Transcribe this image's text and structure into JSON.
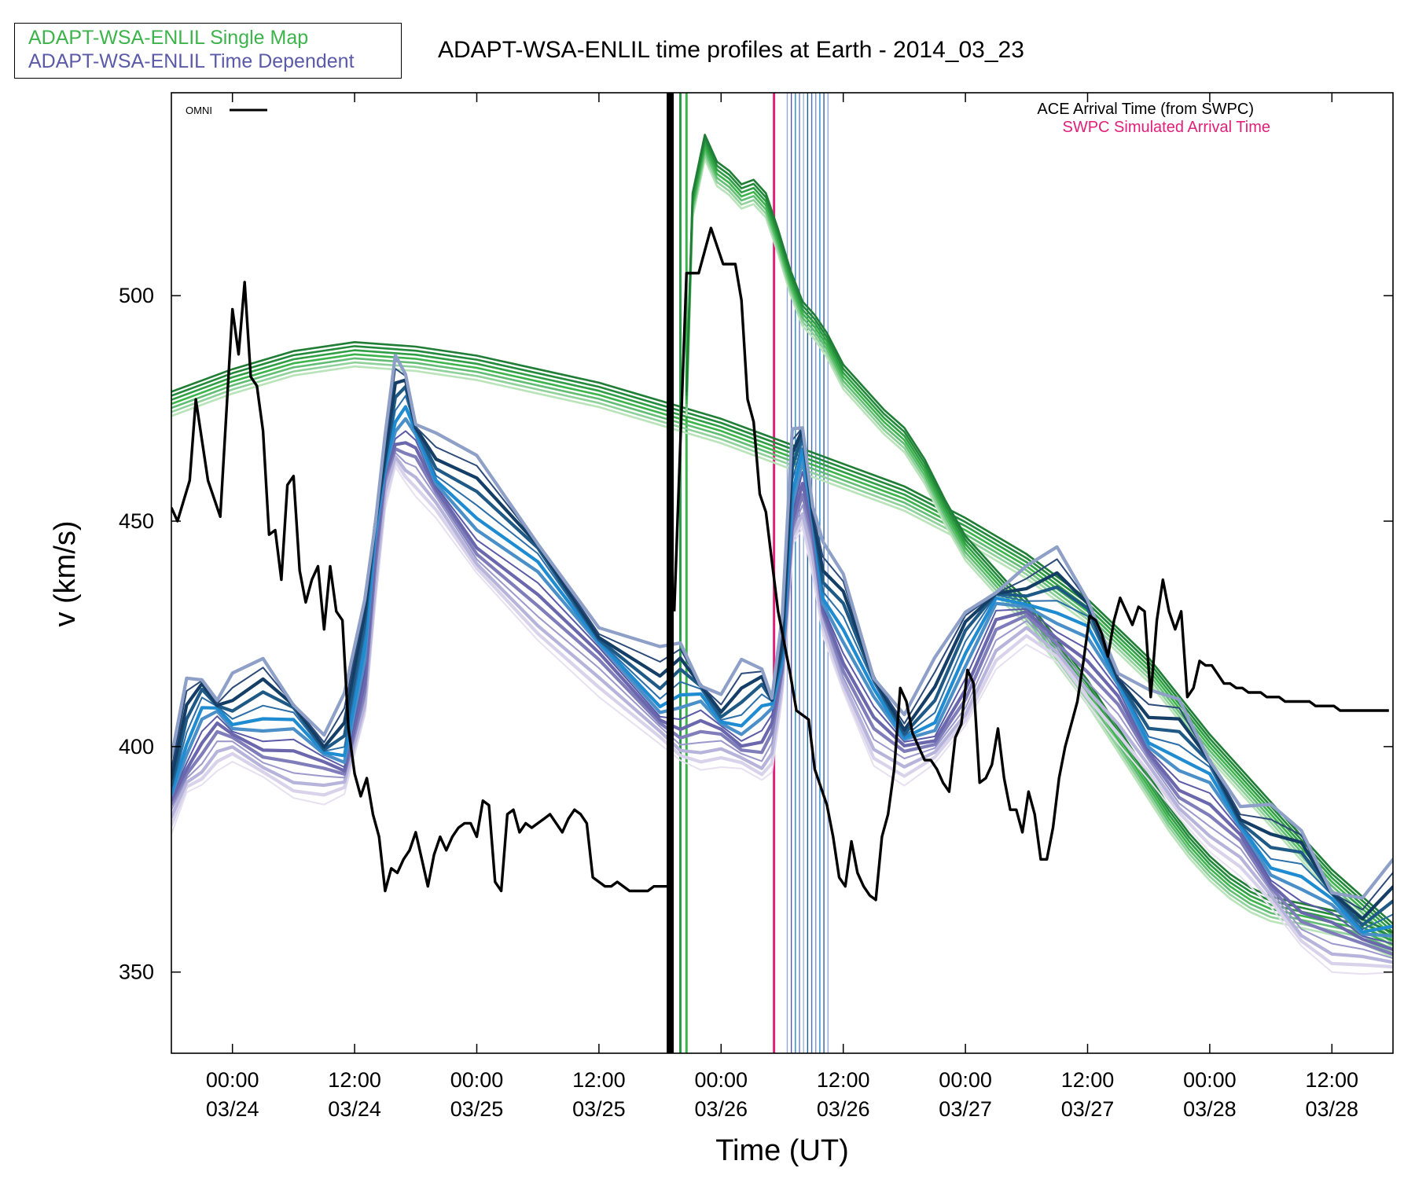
{
  "header": {
    "title": "ADAPT-WSA-ENLIL time profiles at Earth - 2014_03_23"
  },
  "legend": {
    "single_map": "ADAPT-WSA-ENLIL Single Map",
    "time_dependent": "ADAPT-WSA-ENLIL Time Dependent",
    "omni": "OMNI",
    "ace_arrival": "ACE Arrival Time (from SWPC)",
    "swpc_arrival": "SWPC Simulated Arrival Time"
  },
  "colors": {
    "single_map": "#3cb44b",
    "time_dependent": "#5a5aa8",
    "omni": "#000000",
    "swpc": "#e0207a",
    "blue_accent": "#1f8bd0"
  },
  "chart_data": {
    "type": "line",
    "title": "ADAPT-WSA-ENLIL time profiles at Earth - 2014_03_23",
    "xlabel": "Time (UT)",
    "ylabel": "v (km/s)",
    "xlim_hours": [
      -6,
      114
    ],
    "ylim": [
      332,
      545
    ],
    "yticks": [
      350,
      400,
      450,
      500
    ],
    "xticks": [
      {
        "t": 0,
        "line1": "00:00",
        "line2": "03/24"
      },
      {
        "t": 12,
        "line1": "12:00",
        "line2": "03/24"
      },
      {
        "t": 24,
        "line1": "00:00",
        "line2": "03/25"
      },
      {
        "t": 36,
        "line1": "12:00",
        "line2": "03/25"
      },
      {
        "t": 48,
        "line1": "00:00",
        "line2": "03/26"
      },
      {
        "t": 60,
        "line1": "12:00",
        "line2": "03/26"
      },
      {
        "t": 72,
        "line1": "00:00",
        "line2": "03/27"
      },
      {
        "t": 84,
        "line1": "12:00",
        "line2": "03/27"
      },
      {
        "t": 96,
        "line1": "00:00",
        "line2": "03/28"
      },
      {
        "t": 108,
        "line1": "12:00",
        "line2": "03/28"
      }
    ],
    "x_unit_note": "hours since 2014-03-24 00:00 UT",
    "arrival_times": {
      "ace_arrival_hours": 43,
      "swpc_simulated_hours": 53.2,
      "ensemble_arrival_hours": [
        44,
        44.6,
        54.5,
        54.9,
        55.3,
        55.7,
        56.1,
        56.5,
        56.9,
        57.3,
        57.7,
        58.1,
        58.5
      ]
    },
    "series": [
      {
        "name": "OMNI",
        "role": "observed",
        "x": [
          -6,
          -5.4,
          -4.2,
          -3.6,
          -2.4,
          -1.2,
          0,
          0.6,
          1.2,
          1.8,
          2.4,
          3.0,
          3.6,
          4.2,
          4.8,
          5.4,
          6.0,
          6.6,
          7.2,
          7.8,
          8.4,
          9.0,
          9.6,
          10.2,
          10.8,
          11.4,
          12.0,
          12.6,
          13.2,
          13.8,
          14.4,
          15.0,
          15.6,
          16.2,
          16.8,
          17.4,
          18.0,
          18.6,
          19.2,
          19.8,
          20.4,
          21.0,
          21.6,
          22.2,
          22.8,
          23.4,
          24.0,
          24.6,
          25.2,
          25.8,
          26.4,
          27.0,
          27.6,
          28.2,
          28.8,
          29.4,
          30.0,
          30.6,
          31.2,
          31.8,
          32.4,
          33.0,
          33.6,
          34.2,
          34.8,
          35.4,
          36.0,
          36.6,
          37.2,
          37.8,
          38.4,
          39.0,
          39.6,
          40.2,
          40.8,
          41.4,
          42.0,
          42.6,
          43.0
        ],
        "values": [
          453,
          450,
          459,
          477,
          459,
          451,
          497,
          487,
          503,
          482,
          480,
          470,
          447,
          448,
          437,
          458,
          460,
          439,
          432,
          437,
          440,
          426,
          440,
          430,
          428,
          404,
          394,
          389,
          393,
          385,
          380,
          368,
          373,
          372,
          375,
          377,
          381,
          375,
          369,
          376,
          380,
          377,
          380,
          382,
          383,
          383,
          380,
          388,
          387,
          370,
          368,
          385,
          386,
          381,
          383,
          382,
          383,
          384,
          385,
          383,
          381,
          384,
          386,
          385,
          383,
          371,
          370,
          369,
          369,
          370,
          369,
          368,
          368,
          368,
          368,
          369,
          369,
          369,
          369
        ]
      },
      {
        "name": "OMNI",
        "role": "observed-post-arrival",
        "x": [
          43.4,
          44.6,
          45.8,
          47.0,
          48.2,
          49.4,
          50.0,
          50.6,
          51.2,
          51.8,
          52.4,
          53.0,
          53.6,
          54.2,
          54.8,
          55.4,
          56.0,
          56.6,
          57.2,
          57.8,
          58.4,
          59.0,
          59.6,
          60.2,
          60.8,
          61.4,
          62.0,
          62.6,
          63.2,
          63.8,
          64.4,
          65.0,
          65.6,
          66.2,
          66.8,
          67.4,
          68.0,
          68.6,
          69.2,
          69.8,
          70.4,
          71.0,
          71.6,
          72.2,
          72.8,
          73.4,
          74.0,
          74.6,
          75.2,
          75.8,
          76.4,
          77.0,
          77.6,
          78.2,
          78.8,
          79.4,
          80.0,
          80.6,
          81.2,
          81.8,
          82.4,
          83.0,
          83.6,
          84.2,
          84.8,
          85.4,
          86.0,
          86.6,
          87.2,
          87.8,
          88.4,
          89.0,
          89.6,
          90.2,
          90.8,
          91.4,
          92.0,
          92.6,
          93.2,
          93.8,
          94.4,
          95.0,
          95.6,
          96.2,
          96.8,
          97.4,
          98.0,
          98.6,
          99.2,
          99.8,
          100.4,
          101.0,
          101.6,
          102.2,
          102.8,
          103.4,
          104.0,
          104.6,
          105.2,
          105.8,
          106.4,
          107.0,
          107.6,
          108.2,
          108.8,
          109.4,
          110.0,
          110.6,
          111.2,
          111.8,
          112.4,
          113.0,
          113.6
        ],
        "values": [
          430,
          505,
          505,
          515,
          507,
          507,
          499,
          477,
          472,
          456,
          452,
          441,
          430,
          423,
          416,
          408,
          407,
          406,
          395,
          391,
          387,
          380,
          371,
          369,
          379,
          372,
          369,
          367,
          366,
          380,
          385,
          395,
          413,
          410,
          403,
          400,
          397,
          397,
          395,
          392,
          390,
          402,
          405,
          417,
          414,
          392,
          393,
          396,
          404,
          393,
          386,
          386,
          381,
          390,
          385,
          375,
          375,
          382,
          393,
          400,
          405,
          410,
          419,
          429,
          428,
          425,
          420,
          428,
          433,
          430,
          427,
          431,
          430,
          411,
          428,
          437,
          430,
          426,
          430,
          411,
          413,
          419,
          418,
          418,
          416,
          414,
          414,
          413,
          413,
          412,
          412,
          412,
          411,
          411,
          411,
          410,
          410,
          410,
          410,
          410,
          409,
          409,
          409,
          409,
          408,
          408,
          408,
          408,
          408,
          408,
          408,
          408,
          408
        ]
      },
      {
        "name": "ADAPT-WSA-ENLIL Single Map",
        "role": "ensemble-background",
        "x": [
          -6,
          0,
          6,
          12,
          18,
          24,
          30,
          36,
          42,
          48,
          54,
          60,
          66,
          72,
          78,
          84,
          90,
          96,
          102,
          108,
          114
        ],
        "values": [
          476,
          481,
          485,
          487,
          486,
          484,
          481,
          478,
          474,
          470,
          465,
          460,
          455,
          448,
          440,
          430,
          417,
          400,
          385,
          370,
          358
        ]
      },
      {
        "name": "ADAPT-WSA-ENLIL Single Map",
        "role": "ensemble-cme",
        "x": [
          44.6,
          45.2,
          46.4,
          47.6,
          48.8,
          50.0,
          51.2,
          52.4,
          53.6,
          54.8,
          56.0,
          57.2,
          58.4,
          60.0,
          62.0,
          64.0,
          66.0,
          68.0,
          70.0,
          72.0,
          74.0,
          76.0,
          78.0,
          80.0,
          82.0,
          84.0,
          86.0,
          88.0,
          90.0,
          92.0,
          94.0,
          96.0,
          98.0,
          100.0,
          102.0,
          104.0,
          106.0,
          108.0,
          110.0,
          112.0,
          114.0
        ],
        "values": [
          476,
          520,
          533,
          527,
          525,
          522,
          523,
          520,
          512,
          503,
          496,
          493,
          489,
          482,
          477,
          472,
          468,
          461,
          452,
          444,
          439,
          434,
          430,
          424,
          418,
          412,
          405,
          398,
          391,
          384,
          378,
          373,
          369,
          366,
          364,
          363,
          362,
          361,
          360,
          358,
          356
        ]
      },
      {
        "name": "ADAPT-WSA-ENLIL Time Dependent",
        "role": "ensemble",
        "x": [
          -6,
          -4.5,
          -3,
          -1.5,
          0,
          3,
          6,
          9,
          11,
          13,
          14,
          15,
          16,
          17,
          18,
          20,
          24,
          30,
          36,
          42,
          44,
          46,
          48,
          50,
          52,
          53,
          54,
          55,
          56,
          57,
          58,
          60,
          63,
          66,
          69,
          72,
          75,
          78,
          81,
          84,
          87,
          90,
          93,
          96,
          99,
          102,
          105,
          108,
          111,
          114
        ],
        "values": [
          390,
          400,
          403,
          405,
          406,
          404,
          400,
          397,
          399,
          418,
          442,
          462,
          472,
          470,
          466,
          460,
          449,
          435,
          421,
          410,
          408,
          406,
          405,
          405,
          404,
          405,
          420,
          455,
          460,
          448,
          434,
          423,
          407,
          401,
          406,
          416,
          428,
          432,
          429,
          421,
          411,
          402,
          395,
          388,
          381,
          374,
          367,
          361,
          359,
          360
        ]
      }
    ]
  }
}
